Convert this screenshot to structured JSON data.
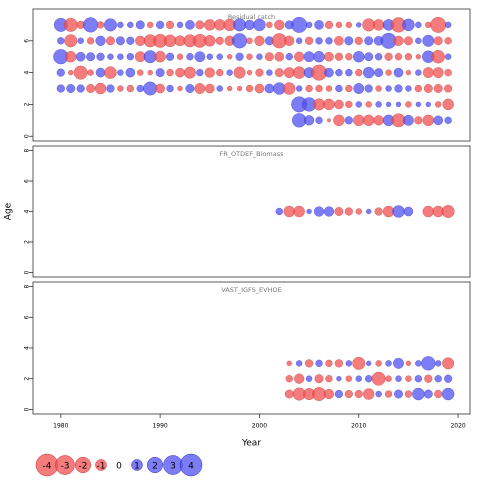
{
  "chart_data": [
    {
      "type": "bubble",
      "title": "Residual catch",
      "x": [
        1980,
        1981,
        1982,
        1983,
        1984,
        1985,
        1986,
        1987,
        1988,
        1989,
        1990,
        1991,
        1992,
        1993,
        1994,
        1995,
        1996,
        1997,
        1998,
        1999,
        2000,
        2001,
        2002,
        2003,
        2004,
        2005,
        2006,
        2007,
        2008,
        2009,
        2010,
        2011,
        2012,
        2013,
        2014,
        2015,
        2016,
        2017,
        2018,
        2019
      ],
      "y": [
        7,
        6,
        5,
        4,
        3,
        2,
        1
      ],
      "values": [
        [
          1.5,
          -1.5,
          -0.5,
          1.8,
          -0.4,
          1.3,
          0.3,
          0.3,
          0.6,
          -0.3,
          0.5,
          -0.5,
          0.3,
          0.7,
          -0.6,
          -1,
          -1,
          -1.2,
          1.3,
          0.8,
          1.2,
          -0.3,
          -0.8,
          0.6,
          2,
          0.3,
          0.7,
          -0.5,
          -0.3,
          -0.3,
          0.2,
          -1.3,
          -1,
          1,
          -1.8,
          1.2,
          0.3,
          -0.3,
          -2,
          0.3
        ],
        [
          0.4,
          -1.3,
          0.3,
          -0.4,
          0.8,
          -0.6,
          0.6,
          0.5,
          -0.8,
          -1.3,
          -1.5,
          -1.2,
          -0.9,
          -1.3,
          -1.5,
          -1,
          -0.5,
          -0.8,
          1.8,
          -0.3,
          -0.8,
          0.6,
          -1.8,
          -0.8,
          0.3,
          -0.5,
          0.4,
          0.4,
          -0.7,
          0.6,
          -0.5,
          0.6,
          0.7,
          2,
          -0.8,
          -0.6,
          0.3,
          1.1,
          -0.6,
          -0.4
        ],
        [
          1.8,
          -1,
          0.7,
          0.6,
          0.5,
          0.3,
          0.3,
          0.4,
          -0.9,
          1.3,
          -1,
          0.5,
          -0.3,
          0.4,
          0.9,
          0.3,
          0.3,
          -0.2,
          0.5,
          -0.3,
          0.3,
          -0.6,
          -0.7,
          0.4,
          -0.8,
          0.9,
          1,
          -0.7,
          -0.5,
          -0.4,
          1,
          0.6,
          0.4,
          -0.5,
          -0.4,
          -0.4,
          -0.2,
          1.2,
          -1.4,
          0.3
        ],
        [
          0.5,
          -0.2,
          -1.5,
          -0.3,
          0.7,
          -1.2,
          0.3,
          0.7,
          -0.3,
          -0.2,
          0.6,
          -0.4,
          -0.7,
          -1.1,
          0.4,
          -0.8,
          -0.4,
          0.3,
          -1.1,
          -0.2,
          -0.5,
          0.3,
          -0.6,
          -0.9,
          -1.2,
          0.9,
          -2,
          0.7,
          0.4,
          0.4,
          -0.4,
          1,
          0.6,
          -0.3,
          0.7,
          -0.2,
          0.3,
          -0.9,
          -0.9,
          -0.4
        ],
        [
          0.5,
          0.6,
          0.5,
          -0.6,
          -1,
          0.5,
          -0.3,
          -0.4,
          0.4,
          1.5,
          -0.7,
          0.4,
          -0.2,
          0.6,
          -0.9,
          -0.7,
          0.3,
          -0.2,
          -0.2,
          -0.4,
          -0.7,
          0.7,
          1.2,
          -1.2,
          0.3,
          -0.4,
          -0.4,
          -0.3,
          0.4,
          -0.4,
          0.9,
          0.5,
          -0.3,
          0.3,
          0.5,
          0.3,
          -0.4,
          -0.6,
          -0.6,
          -0.5
        ],
        [
          null,
          null,
          null,
          null,
          null,
          null,
          null,
          null,
          null,
          null,
          null,
          null,
          null,
          null,
          null,
          null,
          null,
          null,
          null,
          null,
          null,
          null,
          null,
          null,
          2,
          1.6,
          -1.1,
          -1,
          -0.7,
          -0.4,
          0.3,
          -0.3,
          0.3,
          0.2,
          0.2,
          -0.3,
          0.2,
          0.2,
          -0.3,
          -1
        ],
        [
          null,
          null,
          null,
          null,
          null,
          null,
          null,
          null,
          null,
          null,
          null,
          null,
          null,
          null,
          null,
          null,
          null,
          null,
          null,
          null,
          null,
          null,
          null,
          null,
          1.6,
          0.8,
          0.4,
          -0.1,
          -1,
          0.5,
          -1,
          -1,
          -0.8,
          1,
          -1.5,
          0.9,
          -0.5,
          -1,
          0.7,
          0.4
        ]
      ],
      "xlim": [
        1977.2,
        2021.2
      ],
      "ylim": [
        -0.3,
        8.0
      ],
      "yticks": [
        0,
        2,
        4,
        6
      ]
    },
    {
      "type": "bubble",
      "title": "FR_OTDEF_Biomass",
      "ylabel": "Age",
      "x": [
        2002,
        2003,
        2004,
        2005,
        2006,
        2007,
        2008,
        2009,
        2010,
        2011,
        2012,
        2013,
        2014,
        2015,
        2016,
        2017,
        2018,
        2019
      ],
      "y": [
        4
      ],
      "values": [
        [
          0.4,
          -1,
          -1,
          0.2,
          0.8,
          0.8,
          -0.6,
          -0.5,
          -0.3,
          0.2,
          -0.5,
          -1,
          1.2,
          0.7,
          null,
          -1,
          -1,
          -1.3
        ]
      ],
      "xlim": [
        1977.2,
        2021.2
      ],
      "ylim": [
        -0.3,
        8.3
      ],
      "yticks": [
        0,
        2,
        4,
        6,
        8
      ]
    },
    {
      "type": "bubble",
      "title": "VAST_IGFS_EVHOE",
      "xlabel": "Year",
      "x": [
        2003,
        2004,
        2005,
        2006,
        2007,
        2008,
        2009,
        2010,
        2011,
        2012,
        2013,
        2014,
        2015,
        2016,
        2017,
        2018,
        2019
      ],
      "y": [
        3,
        2,
        1
      ],
      "values": [
        [
          -0.2,
          0.3,
          -0.5,
          0.4,
          -0.4,
          -0.5,
          0.3,
          -1.3,
          0.2,
          -0.3,
          0.3,
          0.9,
          -0.2,
          0.3,
          1.6,
          0.3,
          -1.1
        ],
        [
          -0.4,
          -0.8,
          0.3,
          -0.6,
          -0.4,
          0.2,
          -0.3,
          0.3,
          0.4,
          -1.5,
          -0.3,
          0.3,
          -0.3,
          0.4,
          -0.5,
          0.4,
          0.5
        ],
        [
          -0.6,
          -1.3,
          -1.1,
          -1.5,
          -0.8,
          0.5,
          -0.5,
          -0.5,
          -1,
          0.3,
          -0.4,
          0.6,
          -0.4,
          1.2,
          0.6,
          -0.5,
          1.2
        ]
      ],
      "xlim": [
        1977.2,
        2021.2
      ],
      "ylim": [
        -0.3,
        8.3
      ],
      "yticks": [
        0,
        2,
        4,
        6,
        8
      ],
      "xticks": [
        1980,
        1990,
        2000,
        2010,
        2020
      ]
    }
  ],
  "legend": {
    "values": [
      -4,
      -3,
      -2,
      -1,
      0,
      1,
      2,
      3,
      4
    ]
  },
  "colors": {
    "positive": "#5050f0",
    "negative": "#f05050"
  }
}
